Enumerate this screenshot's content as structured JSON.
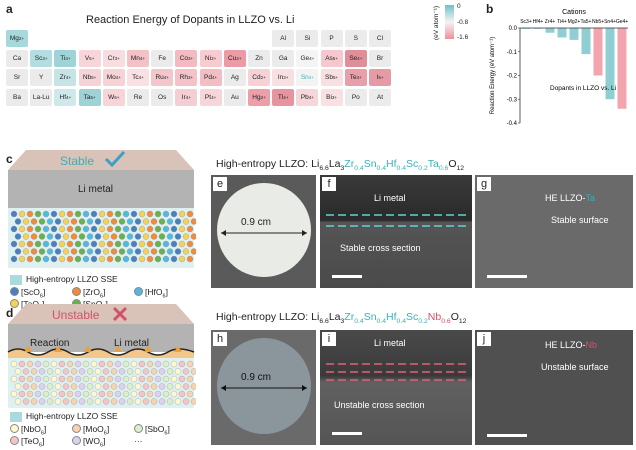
{
  "panel_a": {
    "label": "a",
    "title": "Reaction Energy of Dopants in LLZO vs. Li",
    "colorbar": {
      "unit": "(eV atom⁻¹)",
      "ticks": [
        "0",
        "-0.8",
        "-1.6"
      ]
    },
    "rows": [
      [
        {
          "t": "Mg2+",
          "c": "#a7d8db"
        }
      ],
      [
        {
          "t": "Ca",
          "c": "#ebebeb"
        },
        {
          "t": "Sc3+",
          "c": "#b3dee1"
        },
        {
          "t": "Ti4+",
          "c": "#9ed4d8"
        },
        {
          "t": "V5+",
          "c": "#f8d5d9"
        },
        {
          "t": "Cr3+",
          "c": "#f8dde0"
        },
        {
          "t": "Mn4+",
          "c": "#f4c1c7"
        },
        {
          "t": "Fe",
          "c": "#ebebeb"
        },
        {
          "t": "Co3+",
          "c": "#f4bac1"
        },
        {
          "t": "Ni2+",
          "c": "#f6ccd1"
        },
        {
          "t": "Cu2+",
          "c": "#ec9aa5"
        },
        {
          "t": "Zn",
          "c": "#ebebeb"
        },
        {
          "t": "Ga",
          "c": "#ebebeb"
        },
        {
          "t": "Ge4+",
          "c": "#f4f4f4"
        },
        {
          "t": "As5+",
          "c": "#f6c8cd"
        },
        {
          "t": "Se4+",
          "c": "#df8f99"
        },
        {
          "t": "Br",
          "c": "#ebebeb"
        }
      ],
      [
        {
          "t": "Sr",
          "c": "#ebebeb"
        },
        {
          "t": "Y",
          "c": "#ebebeb"
        },
        {
          "t": "Zr4+",
          "c": "#c4e4e6"
        },
        {
          "t": "Nb5+",
          "c": "#f5d3d7"
        },
        {
          "t": "Mo4+",
          "c": "#f6d3d7"
        },
        {
          "t": "Tc4+",
          "c": "#f8e0e3"
        },
        {
          "t": "Ru4+",
          "c": "#f2c6cb"
        },
        {
          "t": "Rh3+",
          "c": "#f4c2c8"
        },
        {
          "t": "Pd4+",
          "c": "#f2bec4"
        },
        {
          "t": "Ag",
          "c": "#ebebeb"
        },
        {
          "t": "Cd2+",
          "c": "#f6d1d5"
        },
        {
          "t": "In3+",
          "c": "#f8dfe2"
        },
        {
          "t": "Sn4+",
          "c": "#f3f3f3",
          "tc": "#3bb0b8"
        },
        {
          "t": "Sb5+",
          "c": "#f8dfe2"
        },
        {
          "t": "Te4+",
          "c": "#e7a0aa"
        },
        {
          "t": "I5+",
          "c": "#e59aa4"
        }
      ],
      [
        {
          "t": "Ba",
          "c": "#ebebeb"
        },
        {
          "t": "La-Lu",
          "c": "#ebebeb"
        },
        {
          "t": "Hf4+",
          "c": "#cfe8ea"
        },
        {
          "t": "Ta5+",
          "c": "#9dd3d7"
        },
        {
          "t": "W6+",
          "c": "#f6d4d8"
        },
        {
          "t": "Re",
          "c": "#ebebeb"
        },
        {
          "t": "Os",
          "c": "#ebebeb"
        },
        {
          "t": "Ir4+",
          "c": "#f5ced3"
        },
        {
          "t": "Pt4+",
          "c": "#f6d6da"
        },
        {
          "t": "Au",
          "c": "#ebebeb"
        },
        {
          "t": "Hg2+",
          "c": "#ec9fa9"
        },
        {
          "t": "Tl4+",
          "c": "#e7949f"
        },
        {
          "t": "Pb4+",
          "c": "#f6d6da"
        },
        {
          "t": "Bi3+",
          "c": "#f8e0e3"
        },
        {
          "t": "Po",
          "c": "#ebebeb"
        },
        {
          "t": "At",
          "c": "#ebebeb"
        }
      ]
    ],
    "top_right": [
      {
        "t": "Al",
        "c": "#ebebeb"
      },
      {
        "t": "Si",
        "c": "#ebebeb"
      },
      {
        "t": "P",
        "c": "#ebebeb"
      },
      {
        "t": "S",
        "c": "#ebebeb"
      },
      {
        "t": "Cl",
        "c": "#ebebeb"
      }
    ]
  },
  "panel_b": {
    "label": "b",
    "chart_data": {
      "type": "bar",
      "title": "Cations",
      "ylabel": "Reaction Energy (eV atom⁻¹)",
      "annotation": "Dopants in LLZO vs. Li",
      "categories": [
        "Sc3+",
        "Hf4+",
        "Zr4+",
        "Ti4+",
        "Mg2+",
        "Ta5+",
        "Nb5+",
        "Sn4+",
        "Ge4+"
      ],
      "values": [
        -0.001,
        -0.002,
        -0.02,
        -0.04,
        -0.05,
        -0.11,
        -0.2,
        -0.3,
        -0.34
      ],
      "colors": [
        "#8fcfd4",
        "#8fcfd4",
        "#8fcfd4",
        "#8fcfd4",
        "#8fcfd4",
        "#8fcfd4",
        "#f3a4ad",
        "#8fcfd4",
        "#f3a4ad"
      ],
      "ylim": [
        -0.4,
        0.0
      ],
      "yticks": [
        "0.0",
        "-0.1",
        "-0.2",
        "-0.3",
        "-0.4"
      ]
    }
  },
  "panel_c": {
    "label": "c",
    "status": "Stable",
    "status_icon": "check-icon",
    "metal": "Li metal",
    "legend_title": "High-entropy LLZO SSE",
    "legend": [
      {
        "t": "[ScO6]",
        "c": "#4a7fc1"
      },
      {
        "t": "[ZrO6]",
        "c": "#f08a3c"
      },
      {
        "t": "[HfO6]",
        "c": "#55b8e0"
      },
      {
        "t": "[TaO6]",
        "c": "#f3d15a"
      },
      {
        "t": "[SnO6]",
        "c": "#6ab04c"
      },
      {
        "t": "···",
        "c": ""
      }
    ]
  },
  "panel_d": {
    "label": "d",
    "status": "Unstable",
    "status_icon": "cross-icon",
    "reaction": "Reaction",
    "metal": "Li metal",
    "legend_title": "High-entropy LLZO SSE",
    "legend": [
      {
        "t": "[NbO6]",
        "c": "#fff7d0"
      },
      {
        "t": "[MoO6]",
        "c": "#f7d3b0"
      },
      {
        "t": "[SbO6]",
        "c": "#d9f0c8"
      },
      {
        "t": "[TeO6]",
        "c": "#f5c4c4"
      },
      {
        "t": "[WO6]",
        "c": "#dcd1f0"
      },
      {
        "t": "···",
        "c": ""
      }
    ]
  },
  "row1": {
    "prefix": "High-entropy LLZO: ",
    "formula": [
      {
        "t": "Li",
        "s": "6.6"
      },
      {
        "t": "La",
        "s": "3"
      },
      {
        "t": "Zr",
        "s": "0.4",
        "k": "teal"
      },
      {
        "t": "Sn",
        "s": "0.4",
        "k": "teal"
      },
      {
        "t": "Hf",
        "s": "0.4",
        "k": "teal"
      },
      {
        "t": "Sc",
        "s": "0.2",
        "k": "teal"
      },
      {
        "t": "Ta",
        "s": "0.6",
        "k": "teal"
      },
      {
        "t": "O",
        "s": "12"
      }
    ],
    "e": {
      "label": "e",
      "size": "0.9 cm"
    },
    "f": {
      "label": "f",
      "top": "Li metal",
      "bottom": "Stable cross section"
    },
    "g": {
      "label": "g",
      "title": "HE LLZO-",
      "title_hl": "Ta",
      "sub": "Stable surface"
    }
  },
  "row2": {
    "prefix": "High-entropy LLZO: ",
    "formula": [
      {
        "t": "Li",
        "s": "6.6"
      },
      {
        "t": "La",
        "s": "3"
      },
      {
        "t": "Zr",
        "s": "0.4",
        "k": "teal"
      },
      {
        "t": "Sn",
        "s": "0.4",
        "k": "teal"
      },
      {
        "t": "Hf",
        "s": "0.4",
        "k": "teal"
      },
      {
        "t": "Sc",
        "s": "0.2",
        "k": "teal"
      },
      {
        "t": "Nb",
        "s": "0.6",
        "k": "red"
      },
      {
        "t": "O",
        "s": "12"
      }
    ],
    "h": {
      "label": "h",
      "size": "0.9 cm"
    },
    "i": {
      "label": "i",
      "top": "Li metal",
      "bottom": "Unstable cross section"
    },
    "j": {
      "label": "j",
      "title": "HE LLZO-",
      "title_hl": "Nb",
      "sub": "Unstable surface"
    }
  }
}
